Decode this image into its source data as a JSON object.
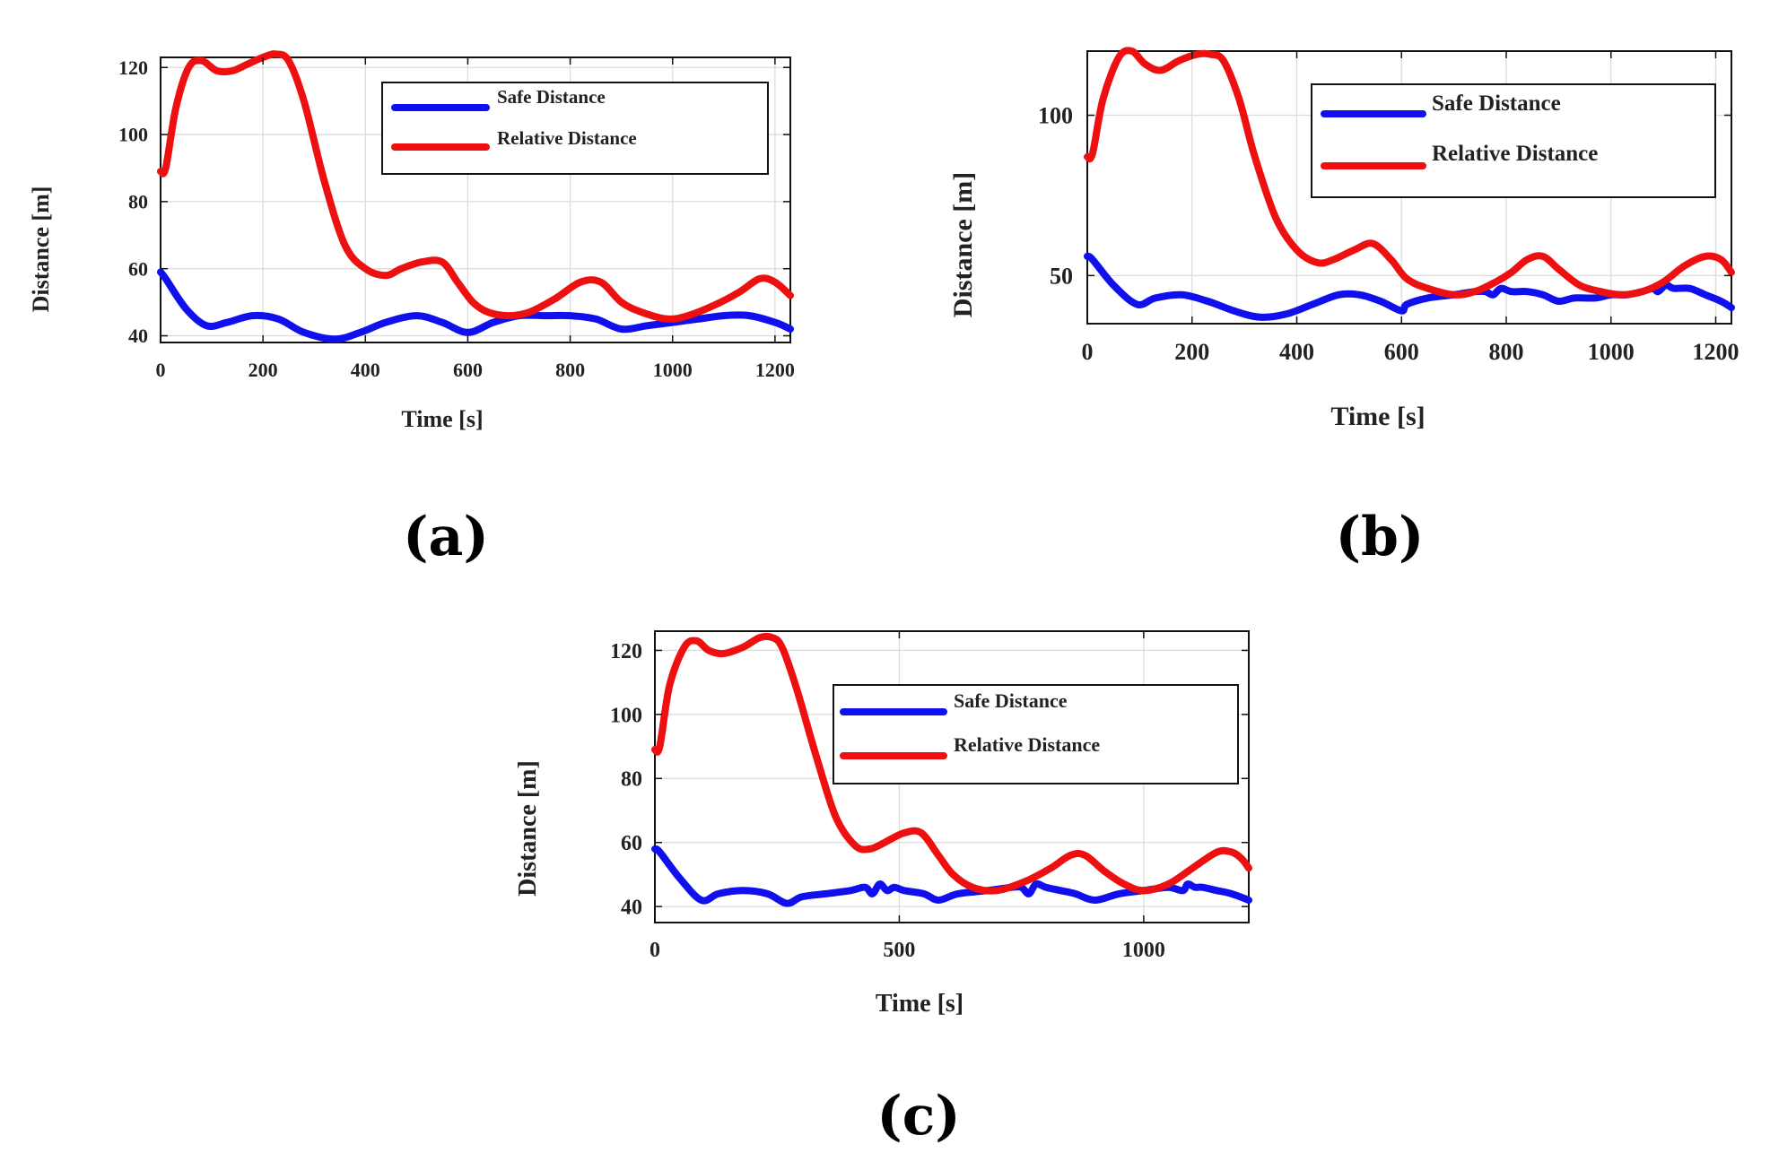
{
  "colors": {
    "safe": "#1010ee",
    "relative": "#ee1010"
  },
  "chart_data": [
    {
      "id": "a",
      "type": "line",
      "panel_label": "(a)",
      "title": "",
      "xlabel": "Time [s]",
      "ylabel": "Distance [m]",
      "xlim": [
        0,
        1230
      ],
      "ylim": [
        38,
        123
      ],
      "xticks": [
        0,
        200,
        400,
        600,
        800,
        1000,
        1200
      ],
      "yticks": [
        40,
        60,
        80,
        100,
        120
      ],
      "grid": true,
      "legend_position": "top-right",
      "series": [
        {
          "name": "Safe Distance",
          "color": "#1010ee",
          "x": [
            0,
            10,
            50,
            90,
            130,
            180,
            230,
            280,
            340,
            390,
            440,
            500,
            550,
            600,
            650,
            700,
            750,
            800,
            850,
            900,
            950,
            1000,
            1050,
            1100,
            1150,
            1200,
            1230
          ],
          "y": [
            59,
            57,
            48,
            43,
            44,
            46,
            45,
            41,
            39,
            41,
            44,
            46,
            44,
            41,
            44,
            46,
            46,
            46,
            45,
            42,
            43,
            44,
            45,
            46,
            46,
            44,
            42
          ]
        },
        {
          "name": "Relative Distance",
          "color": "#ee1010",
          "x": [
            0,
            10,
            30,
            55,
            80,
            110,
            140,
            170,
            200,
            225,
            250,
            280,
            320,
            360,
            400,
            440,
            470,
            510,
            550,
            580,
            610,
            640,
            680,
            720,
            770,
            820,
            860,
            900,
            940,
            990,
            1030,
            1080,
            1130,
            1170,
            1200,
            1230
          ],
          "y": [
            89,
            90,
            108,
            120,
            122,
            119,
            119,
            121,
            123,
            124,
            122,
            110,
            86,
            67,
            60,
            58,
            60,
            62,
            62,
            56,
            50,
            47,
            46,
            47,
            51,
            56,
            56,
            50,
            47,
            45,
            46,
            49,
            53,
            57,
            56,
            52
          ]
        }
      ]
    },
    {
      "id": "b",
      "type": "line",
      "panel_label": "(b)",
      "title": "",
      "xlabel": "Time [s]",
      "ylabel": "Distance [m]",
      "xlim": [
        0,
        1230
      ],
      "ylim": [
        35,
        120
      ],
      "xticks": [
        0,
        200,
        400,
        600,
        800,
        1000,
        1200
      ],
      "yticks": [
        50,
        100
      ],
      "grid": true,
      "legend_position": "top-right",
      "series": [
        {
          "name": "Safe Distance",
          "color": "#1010ee",
          "x": [
            0,
            10,
            50,
            95,
            130,
            180,
            230,
            280,
            330,
            380,
            430,
            480,
            520,
            560,
            600,
            610,
            650,
            700,
            740,
            760,
            775,
            790,
            810,
            840,
            870,
            900,
            930,
            970,
            1000,
            1030,
            1060,
            1080,
            1090,
            1105,
            1120,
            1150,
            1180,
            1210,
            1230
          ],
          "y": [
            56,
            55,
            47,
            41,
            43,
            44,
            42,
            39,
            37,
            38,
            41,
            44,
            44,
            42,
            39,
            41,
            43,
            44,
            45,
            45,
            44,
            46,
            45,
            45,
            44,
            42,
            43,
            43,
            44,
            44,
            45,
            46,
            45,
            47,
            46,
            46,
            44,
            42,
            40
          ]
        },
        {
          "name": "Relative Distance",
          "color": "#ee1010",
          "x": [
            0,
            10,
            30,
            60,
            85,
            110,
            140,
            175,
            210,
            235,
            260,
            290,
            320,
            360,
            400,
            440,
            470,
            510,
            545,
            580,
            610,
            650,
            700,
            740,
            780,
            810,
            840,
            870,
            900,
            940,
            980,
            1020,
            1060,
            1100,
            1140,
            1180,
            1210,
            1230
          ],
          "y": [
            87,
            88,
            105,
            118,
            120,
            116,
            114,
            117,
            119,
            119,
            117,
            105,
            87,
            68,
            58,
            54,
            55,
            58,
            60,
            55,
            49,
            46,
            44,
            45,
            48,
            51,
            55,
            56,
            52,
            47,
            45,
            44,
            45,
            48,
            53,
            56,
            55,
            51
          ]
        }
      ]
    },
    {
      "id": "c",
      "type": "line",
      "panel_label": "(c)",
      "title": "",
      "xlabel": "Time [s]",
      "ylabel": "Distance [m]",
      "xlim": [
        0,
        1215
      ],
      "ylim": [
        35,
        126
      ],
      "xticks": [
        0,
        500,
        1000
      ],
      "yticks": [
        40,
        60,
        80,
        100,
        120
      ],
      "grid": true,
      "legend_position": "top-right",
      "series": [
        {
          "name": "Safe Distance",
          "color": "#1010ee",
          "x": [
            0,
            10,
            50,
            95,
            130,
            180,
            230,
            270,
            300,
            350,
            400,
            430,
            445,
            460,
            475,
            490,
            510,
            550,
            580,
            620,
            680,
            730,
            750,
            765,
            780,
            800,
            830,
            860,
            900,
            950,
            1000,
            1050,
            1080,
            1090,
            1105,
            1120,
            1150,
            1180,
            1215
          ],
          "y": [
            58,
            57,
            49,
            42,
            44,
            45,
            44,
            41,
            43,
            44,
            45,
            46,
            44,
            47,
            45,
            46,
            45,
            44,
            42,
            44,
            45,
            46,
            46,
            44,
            47,
            46,
            45,
            44,
            42,
            44,
            45,
            46,
            45,
            47,
            46,
            46,
            45,
            44,
            42
          ]
        },
        {
          "name": "Relative Distance",
          "color": "#ee1010",
          "x": [
            0,
            10,
            30,
            60,
            85,
            110,
            140,
            180,
            215,
            240,
            260,
            290,
            330,
            370,
            410,
            440,
            470,
            510,
            545,
            580,
            610,
            650,
            700,
            760,
            810,
            850,
            880,
            920,
            960,
            1000,
            1050,
            1100,
            1150,
            1180,
            1200,
            1215
          ],
          "y": [
            89,
            90,
            109,
            121,
            123,
            120,
            119,
            121,
            124,
            124,
            121,
            108,
            87,
            68,
            59,
            58,
            60,
            63,
            63,
            56,
            50,
            46,
            45,
            48,
            52,
            56,
            56,
            51,
            47,
            45,
            47,
            52,
            57,
            57,
            55,
            52
          ]
        }
      ]
    }
  ]
}
